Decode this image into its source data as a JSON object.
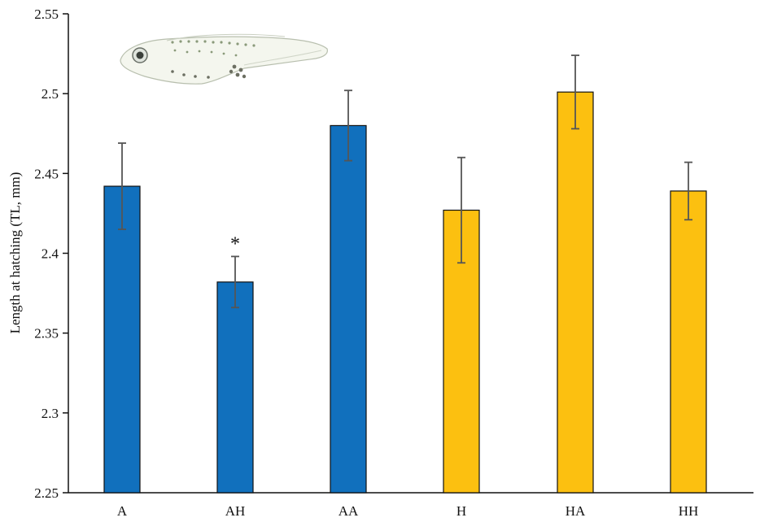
{
  "chart_data": {
    "type": "bar",
    "title": "",
    "xlabel": "",
    "ylabel": "Length at hatching (TL, mm)",
    "ylim": [
      2.25,
      2.55
    ],
    "yticks": [
      "2.25",
      "2.3",
      "2.35",
      "2.4",
      "2.45",
      "2.5",
      "2.55"
    ],
    "categories": [
      "A",
      "AH",
      "AA",
      "H",
      "HA",
      "HH"
    ],
    "values": [
      2.442,
      2.382,
      2.48,
      2.427,
      2.501,
      2.439
    ],
    "errors": [
      0.027,
      0.016,
      0.022,
      0.033,
      0.023,
      0.018
    ],
    "bar_colors": [
      "#1170bd",
      "#1170bd",
      "#1170bd",
      "#fcc010",
      "#fcc010",
      "#fcc010"
    ],
    "error_bar_color": "#555555",
    "annotations": [
      {
        "category": "AH",
        "text": "*"
      }
    ],
    "grid": false,
    "legend": "none",
    "inset_image": "larval-fish-illustration"
  }
}
